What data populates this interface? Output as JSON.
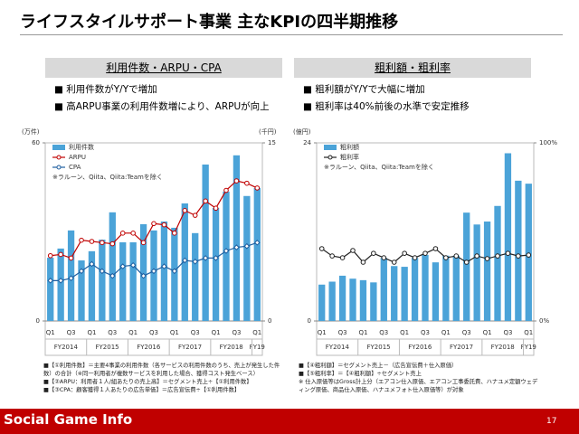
{
  "title": "ライフスタイルサポート事業 主なKPIの四半期推移",
  "panels": [
    {
      "header": "利用件数・ARPU・CPA",
      "bullets": [
        "利用件数がY/Yで増加",
        "高ARPU事業の利用件数増により、ARPUが向上"
      ]
    },
    {
      "header": "粗利額・粗利率",
      "bullets": [
        "粗利額がY/Yで大幅に増加",
        "粗利率は40%前後の水準で安定推移"
      ]
    }
  ],
  "chart_data": [
    {
      "type": "bar_line",
      "y_unit": "(万件)",
      "y2_unit": "(千円)",
      "note": "※ラルーン、Qiita、Qiita:Teamを除く",
      "categories": [
        "Q1",
        null,
        "Q3",
        null,
        "Q1",
        null,
        "Q3",
        null,
        "Q1",
        null,
        "Q3",
        null,
        "Q1",
        null,
        "Q3",
        null,
        "Q1",
        null,
        "Q3",
        null,
        "Q1"
      ],
      "groups": [
        "FY2014",
        "FY2015",
        "FY2016",
        "FY2017",
        "FY2018",
        "FY19"
      ],
      "ylim": [
        0,
        60
      ],
      "yticks": [
        0,
        60
      ],
      "y2lim": [
        0,
        15
      ],
      "y2ticks": [
        0,
        15
      ],
      "series": [
        {
          "name": "利用件数",
          "color": "#4ba3d8",
          "kind": "bar",
          "values": [
            21.3,
            24.4,
            30.5,
            20.4,
            23.5,
            27.4,
            36.6,
            26.5,
            26.5,
            32.6,
            30.5,
            33.5,
            31.4,
            39.6,
            29.6,
            52.7,
            38.1,
            43.6,
            55.8,
            42.1,
            44.8
          ]
        },
        {
          "name": "ARPU",
          "color": "#c00000",
          "kind": "line",
          "marker": "circle",
          "axis": "y2",
          "values": [
            5.5,
            5.6,
            5.3,
            6.8,
            6.7,
            6.6,
            6.5,
            7.4,
            7.4,
            6.6,
            8.2,
            8.1,
            7.4,
            9.3,
            8.9,
            10.1,
            9.5,
            11.0,
            11.8,
            11.6,
            11.2
          ]
        },
        {
          "name": "CPA",
          "color": "#1f5fa0",
          "kind": "line",
          "marker": "diamond",
          "axis": "y2",
          "values": [
            3.4,
            3.4,
            3.6,
            4.2,
            4.8,
            4.2,
            3.8,
            4.6,
            4.7,
            3.8,
            4.2,
            4.6,
            4.2,
            5.1,
            5.0,
            5.3,
            5.3,
            5.9,
            6.2,
            6.3,
            6.6
          ]
        }
      ]
    },
    {
      "type": "bar_line",
      "y_unit": "(億円)",
      "note": "※ラルーン、Qiita、Qiita:Teamを除く",
      "categories": [
        "Q1",
        null,
        "Q3",
        null,
        "Q1",
        null,
        "Q3",
        null,
        "Q1",
        null,
        "Q3",
        null,
        "Q1",
        null,
        "Q3",
        null,
        "Q1",
        null,
        "Q3",
        null,
        "Q1"
      ],
      "groups": [
        "FY2014",
        "FY2015",
        "FY2016",
        "FY2017",
        "FY2018",
        "FY19"
      ],
      "ylim": [
        0,
        24
      ],
      "yticks": [
        0,
        24
      ],
      "y2lim": [
        0,
        100
      ],
      "y2ticks": [
        {
          "value": 0,
          "label": "0%"
        },
        {
          "value": 100,
          "label": "100%"
        }
      ],
      "series": [
        {
          "name": "粗利額",
          "color": "#4ba3d8",
          "kind": "bar",
          "values": [
            4.9,
            5.3,
            6.1,
            5.7,
            5.5,
            5.2,
            8.5,
            7.4,
            7.3,
            8.5,
            8.9,
            7.9,
            8.8,
            8.8,
            14.6,
            13.0,
            13.4,
            15.5,
            22.6,
            18.9,
            18.5
          ]
        },
        {
          "name": "粗利率",
          "color": "#222222",
          "kind": "line",
          "marker": "circle",
          "axis": "y2",
          "values": [
            40.6,
            36.5,
            35.5,
            39.6,
            33,
            38,
            35.5,
            33,
            38,
            35.5,
            38,
            40.6,
            35.5,
            36.5,
            33,
            36.5,
            35,
            36.5,
            38,
            36.5,
            37
          ]
        }
      ]
    }
  ],
  "footnotes": [
    [
      "■【①利用件数】＝主要4事業の利用件数（各サービスの利用件数のうち、売上が発生した件数）の合計（※同一利用者が複数サービスを利用した場合、獲得コスト発生ベース）",
      "■【②ARPU：利用者１人/組あたりの売上高】＝セグメント売上÷【①利用件数】",
      "■【③CPA：顧客獲得１人あたりの広告単価】＝広告宣伝費÷【①利用件数】"
    ],
    [
      "■【④粗利額】＝セグメント売上－（広告宣伝費＋仕入原価）",
      "■【⑤粗利率】＝【④粗利額】÷セグメント売上",
      "※ 仕入原価等はGross計上分（エアコン仕入原価、エアコン工事委託費、ハナユメ定額ウェディング原価、商品仕入原価、ハナユメフォト仕入原価等）が対象"
    ]
  ],
  "logo": "Social Game Info",
  "page": "17"
}
